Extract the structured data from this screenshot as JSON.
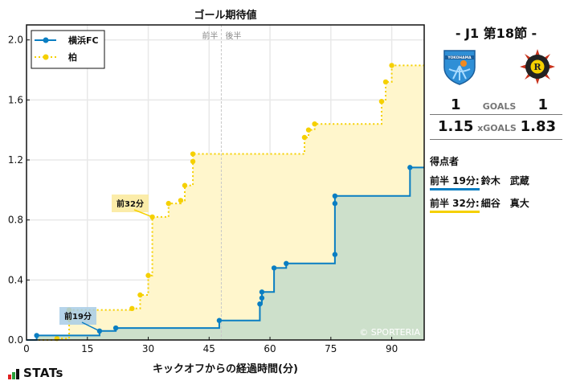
{
  "chart_data": {
    "type": "line",
    "title": "ゴール期待値",
    "xlabel": "キックオフからの経過時間(分)",
    "ylabel": "",
    "xlim": [
      0,
      98
    ],
    "ylim": [
      0,
      2.1
    ],
    "xticks": [
      0,
      15,
      30,
      45,
      60,
      75,
      90
    ],
    "yticks": [
      0.0,
      0.4,
      0.8,
      1.2,
      1.6,
      2.0
    ],
    "grid": true,
    "legend_position": "upper left",
    "halftime_marker": {
      "x": 48,
      "labels": [
        "前半",
        "後半"
      ]
    },
    "watermark": "© SPORTERIA",
    "series": [
      {
        "name": "横浜FC",
        "color": "#0a7ec2",
        "fill": "#cde0cb",
        "line_style": "solid",
        "points": [
          [
            2.5,
            0.03
          ],
          [
            18,
            0.06
          ],
          [
            22,
            0.08
          ],
          [
            47.5,
            0.13
          ],
          [
            57.5,
            0.24
          ],
          [
            58,
            0.28
          ],
          [
            58,
            0.32
          ],
          [
            61,
            0.48
          ],
          [
            64,
            0.51
          ],
          [
            76,
            0.57
          ],
          [
            76,
            0.91
          ],
          [
            76,
            0.96
          ],
          [
            94.5,
            1.15
          ]
        ],
        "final": 1.15,
        "annotations": [
          {
            "label": "前19分",
            "x": 18,
            "y": 0.06
          }
        ]
      },
      {
        "name": "柏",
        "color": "#f5d000",
        "fill": "#fff6cc",
        "line_style": "dotted",
        "points": [
          [
            7.5,
            0.01
          ],
          [
            10.5,
            0.14
          ],
          [
            10.5,
            0.2
          ],
          [
            26,
            0.21
          ],
          [
            28,
            0.3
          ],
          [
            30,
            0.43
          ],
          [
            31,
            0.82
          ],
          [
            35,
            0.91
          ],
          [
            38,
            0.93
          ],
          [
            39,
            1.03
          ],
          [
            41,
            1.19
          ],
          [
            41,
            1.24
          ],
          [
            68.5,
            1.35
          ],
          [
            69.5,
            1.4
          ],
          [
            71,
            1.44
          ],
          [
            87.5,
            1.59
          ],
          [
            88.5,
            1.72
          ],
          [
            90,
            1.83
          ]
        ],
        "final": 1.83,
        "annotations": [
          {
            "label": "前32分",
            "x": 31,
            "y": 0.82
          }
        ]
      }
    ]
  },
  "match": {
    "round": "-  J1 第18節  -",
    "home": {
      "name": "横浜FC",
      "goals": "1",
      "xgoals": "1.15",
      "logo_icon": "yokohama-fc-crest"
    },
    "away": {
      "name": "柏",
      "goals": "1",
      "xgoals": "1.83",
      "logo_icon": "kashiwa-reysol-crest"
    },
    "goals_label": "GOALS",
    "xgoals_label": "xGOALS"
  },
  "scorers": {
    "title": "得点者",
    "items": [
      {
        "time": "前半 19分:",
        "name": "鈴木　武蔵",
        "color": "#0a7ec2"
      },
      {
        "time": "前半 32分:",
        "name": "細谷　真大",
        "color": "#f5d000"
      }
    ]
  },
  "branding": {
    "stats": "STATs"
  }
}
